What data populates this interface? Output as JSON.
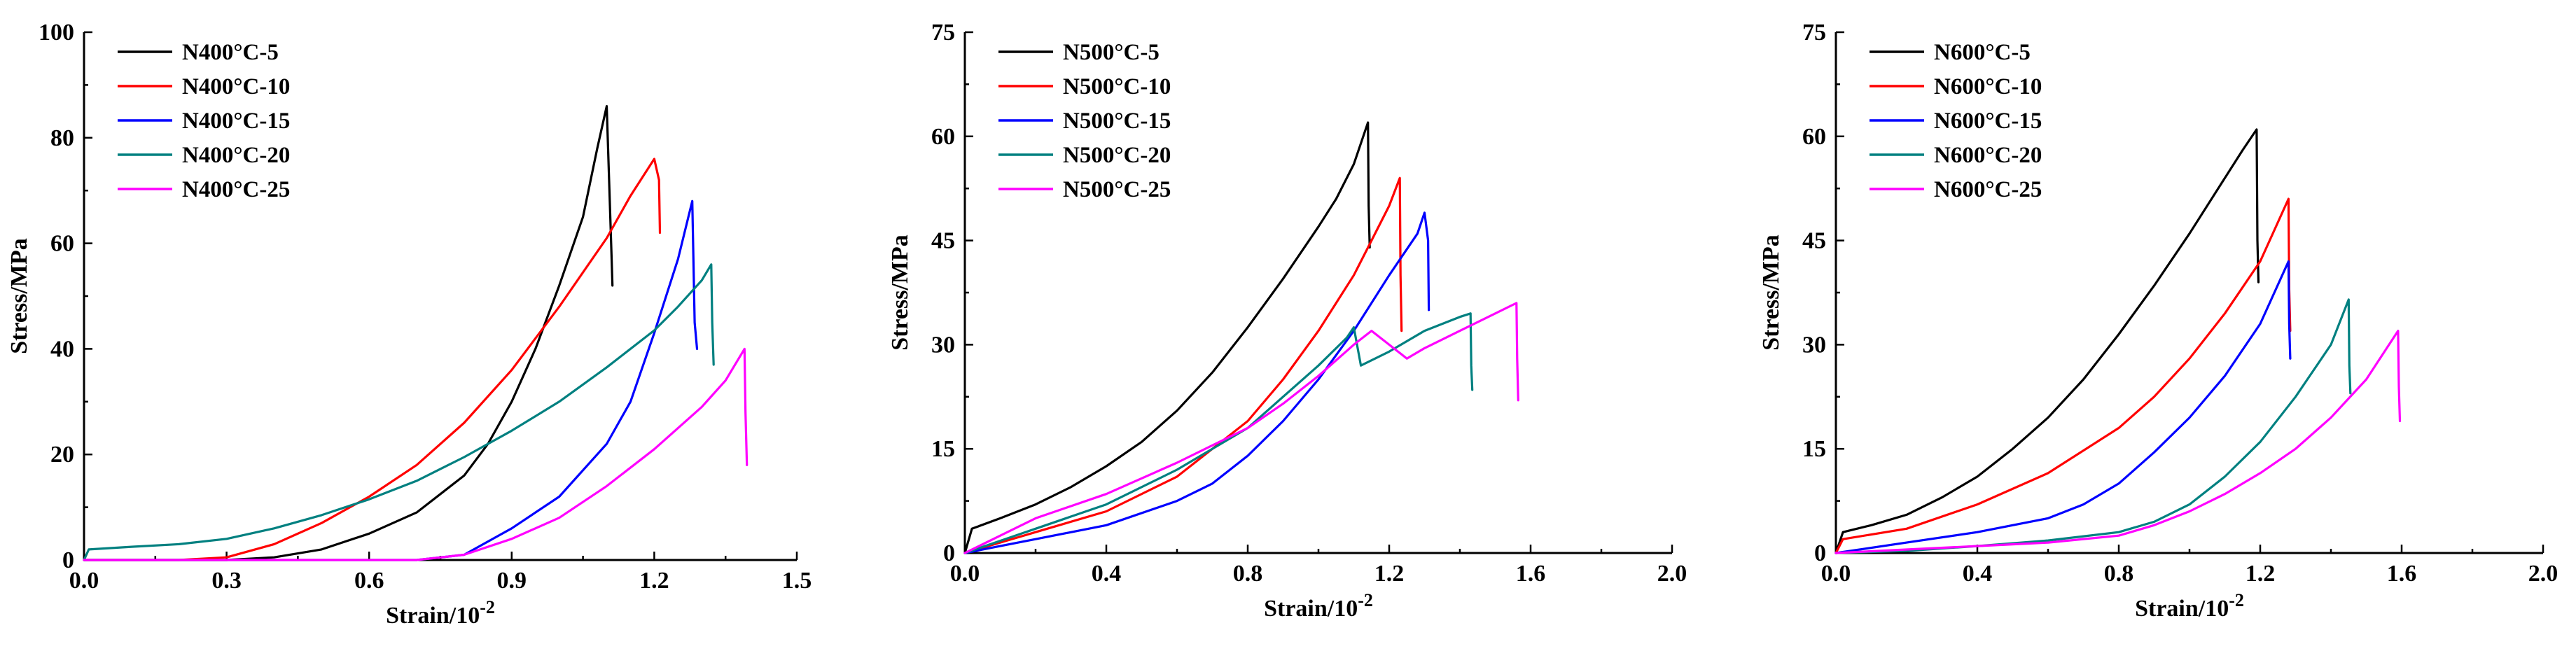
{
  "chart_data": [
    {
      "type": "line",
      "title": "",
      "xlabel": "Strain/10",
      "xlabel_superscript": "-2",
      "ylabel": "Stress/MPa",
      "xlim": [
        0,
        1.5
      ],
      "ylim": [
        0,
        100
      ],
      "xticks": [
        0.0,
        0.3,
        0.6,
        0.9,
        1.2,
        1.5
      ],
      "xtick_labels": [
        "0.0",
        "0.3",
        "0.6",
        "0.9",
        "1.2",
        "1.5"
      ],
      "yticks": [
        0,
        20,
        40,
        60,
        80,
        100
      ],
      "ytick_labels": [
        "0",
        "20",
        "40",
        "60",
        "80",
        "100"
      ],
      "legend_position": "top-left",
      "series": [
        {
          "name": "N400°C-5",
          "color": "#000000",
          "x": [
            0,
            0.3,
            0.4,
            0.5,
            0.6,
            0.7,
            0.8,
            0.85,
            0.9,
            0.95,
            1.0,
            1.05,
            1.08,
            1.1,
            1.105,
            1.11,
            1.112
          ],
          "y": [
            0,
            0,
            0.5,
            2,
            5,
            9,
            16,
            22,
            30,
            40,
            52,
            65,
            78,
            86,
            72,
            58,
            52
          ]
        },
        {
          "name": "N400°C-10",
          "color": "#ff0000",
          "x": [
            0,
            0.2,
            0.3,
            0.4,
            0.5,
            0.6,
            0.7,
            0.8,
            0.9,
            1.0,
            1.1,
            1.15,
            1.2,
            1.21,
            1.212
          ],
          "y": [
            0,
            0,
            0.5,
            3,
            7,
            12,
            18,
            26,
            36,
            48,
            61,
            69,
            76,
            72,
            62
          ]
        },
        {
          "name": "N400°C-15",
          "color": "#0000ff",
          "x": [
            0,
            0.7,
            0.8,
            0.9,
            1.0,
            1.1,
            1.15,
            1.2,
            1.25,
            1.28,
            1.285,
            1.29
          ],
          "y": [
            0,
            0,
            1,
            6,
            12,
            22,
            30,
            43,
            57,
            68,
            45,
            40
          ]
        },
        {
          "name": "N400°C-20",
          "color": "#008080",
          "x": [
            0,
            0.01,
            0.1,
            0.2,
            0.3,
            0.4,
            0.5,
            0.6,
            0.7,
            0.8,
            0.9,
            1.0,
            1.1,
            1.2,
            1.25,
            1.3,
            1.32,
            1.322,
            1.325
          ],
          "y": [
            0,
            2,
            2.5,
            3,
            4,
            6,
            8.5,
            11.5,
            15,
            19.5,
            24.5,
            30,
            36.5,
            43.5,
            48,
            53,
            56,
            45,
            37
          ]
        },
        {
          "name": "N400°C-25",
          "color": "#ff00ff",
          "x": [
            0,
            0.7,
            0.8,
            0.9,
            1.0,
            1.1,
            1.2,
            1.3,
            1.35,
            1.39,
            1.392,
            1.395
          ],
          "y": [
            0,
            0,
            1,
            4,
            8,
            14,
            21,
            29,
            34,
            40,
            28,
            18
          ]
        }
      ]
    },
    {
      "type": "line",
      "title": "",
      "xlabel": "Strain/10",
      "xlabel_superscript": "-2",
      "ylabel": "Stress/MPa",
      "xlim": [
        0,
        2.0
      ],
      "ylim": [
        0,
        75
      ],
      "xticks": [
        0.0,
        0.4,
        0.8,
        1.2,
        1.6,
        2.0
      ],
      "xtick_labels": [
        "0.0",
        "0.4",
        "0.8",
        "1.2",
        "1.6",
        "2.0"
      ],
      "yticks": [
        0,
        15,
        30,
        45,
        60,
        75
      ],
      "ytick_labels": [
        "0",
        "15",
        "30",
        "45",
        "60",
        "75"
      ],
      "legend_position": "top-left",
      "series": [
        {
          "name": "N500°C-5",
          "color": "#000000",
          "x": [
            0,
            0.02,
            0.1,
            0.2,
            0.3,
            0.4,
            0.5,
            0.6,
            0.7,
            0.8,
            0.9,
            1.0,
            1.05,
            1.1,
            1.14,
            1.142,
            1.145
          ],
          "y": [
            0,
            3.5,
            5,
            7,
            9.5,
            12.5,
            16,
            20.5,
            26,
            32.5,
            39.5,
            47,
            51,
            56,
            62,
            50,
            44
          ]
        },
        {
          "name": "N500°C-10",
          "color": "#ff0000",
          "x": [
            0,
            0.2,
            0.4,
            0.6,
            0.8,
            0.9,
            1.0,
            1.1,
            1.15,
            1.2,
            1.23,
            1.232,
            1.235
          ],
          "y": [
            0,
            3,
            6,
            11,
            19,
            25,
            32,
            40,
            45,
            50,
            54,
            40,
            32
          ]
        },
        {
          "name": "N500°C-15",
          "color": "#0000ff",
          "x": [
            0,
            0.1,
            0.2,
            0.4,
            0.6,
            0.7,
            0.8,
            0.9,
            1.0,
            1.1,
            1.2,
            1.28,
            1.3,
            1.31,
            1.312
          ],
          "y": [
            0,
            1,
            2,
            4,
            7.5,
            10,
            14,
            19,
            25,
            32,
            40,
            46,
            49,
            45,
            35
          ]
        },
        {
          "name": "N500°C-20",
          "color": "#008080",
          "x": [
            0,
            0.2,
            0.4,
            0.6,
            0.8,
            0.9,
            1.0,
            1.08,
            1.1,
            1.12,
            1.2,
            1.3,
            1.4,
            1.43,
            1.432,
            1.435
          ],
          "y": [
            0,
            3.5,
            7,
            12,
            18,
            22.5,
            27,
            31,
            32.5,
            27,
            29,
            32,
            34,
            34.5,
            27,
            23.5
          ]
        },
        {
          "name": "N500°C-25",
          "color": "#ff00ff",
          "x": [
            0,
            0.2,
            0.4,
            0.6,
            0.8,
            0.9,
            1.0,
            1.1,
            1.15,
            1.2,
            1.25,
            1.3,
            1.4,
            1.5,
            1.56,
            1.562,
            1.565
          ],
          "y": [
            0,
            5,
            8.5,
            13,
            18,
            21.5,
            25.5,
            30,
            32,
            30,
            28,
            29.5,
            32,
            34.5,
            36,
            28,
            22
          ]
        }
      ]
    },
    {
      "type": "line",
      "title": "",
      "xlabel": "Strain/10",
      "xlabel_superscript": "-2",
      "ylabel": "Stress/MPa",
      "xlim": [
        0,
        2.0
      ],
      "ylim": [
        0,
        75
      ],
      "xticks": [
        0.0,
        0.4,
        0.8,
        1.2,
        1.6,
        2.0
      ],
      "xtick_labels": [
        "0.0",
        "0.4",
        "0.8",
        "1.2",
        "1.6",
        "2.0"
      ],
      "yticks": [
        0,
        15,
        30,
        45,
        60,
        75
      ],
      "ytick_labels": [
        "0",
        "15",
        "30",
        "45",
        "60",
        "75"
      ],
      "legend_position": "top-left",
      "series": [
        {
          "name": "N600°C-5",
          "color": "#000000",
          "x": [
            0,
            0.02,
            0.1,
            0.2,
            0.3,
            0.4,
            0.5,
            0.6,
            0.7,
            0.8,
            0.9,
            1.0,
            1.1,
            1.15,
            1.19,
            1.192,
            1.195
          ],
          "y": [
            0,
            3,
            4,
            5.5,
            8,
            11,
            15,
            19.5,
            25,
            31.5,
            38.5,
            46,
            54,
            58,
            61,
            45,
            39
          ]
        },
        {
          "name": "N600°C-10",
          "color": "#ff0000",
          "x": [
            0,
            0.02,
            0.2,
            0.4,
            0.6,
            0.8,
            0.9,
            1.0,
            1.1,
            1.2,
            1.28,
            1.282,
            1.285
          ],
          "y": [
            0,
            2,
            3.5,
            7,
            11.5,
            18,
            22.5,
            28,
            34.5,
            42,
            51,
            38,
            32
          ]
        },
        {
          "name": "N600°C-15",
          "color": "#0000ff",
          "x": [
            0,
            0.2,
            0.4,
            0.6,
            0.7,
            0.8,
            0.9,
            1.0,
            1.1,
            1.2,
            1.28,
            1.282,
            1.285
          ],
          "y": [
            0,
            1.5,
            3,
            5,
            7,
            10,
            14.5,
            19.5,
            25.5,
            33,
            42,
            33,
            28
          ]
        },
        {
          "name": "N600°C-20",
          "color": "#008080",
          "x": [
            0,
            0.2,
            0.4,
            0.6,
            0.8,
            0.9,
            1.0,
            1.1,
            1.2,
            1.3,
            1.4,
            1.45,
            1.452,
            1.455
          ],
          "y": [
            0,
            0.3,
            1,
            1.8,
            3,
            4.5,
            7,
            11,
            16,
            22.5,
            30,
            36.5,
            27,
            23
          ]
        },
        {
          "name": "N600°C-25",
          "color": "#ff00ff",
          "x": [
            0,
            0.2,
            0.4,
            0.6,
            0.8,
            0.9,
            1.0,
            1.1,
            1.2,
            1.3,
            1.4,
            1.5,
            1.59,
            1.592,
            1.595
          ],
          "y": [
            0,
            0.5,
            1,
            1.5,
            2.5,
            4,
            6,
            8.5,
            11.5,
            15,
            19.5,
            25,
            32,
            24,
            19
          ]
        }
      ]
    }
  ]
}
